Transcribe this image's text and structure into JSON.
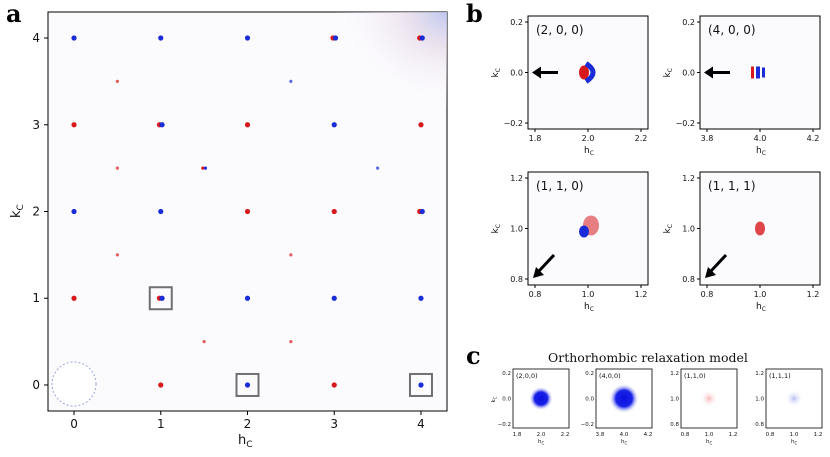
{
  "panel_letters": {
    "a": "a",
    "b": "b",
    "c": "c"
  },
  "colors": {
    "positive": "#d7191c",
    "negative": "#1a2bd8",
    "box": "#707070",
    "arrow": "#000000"
  },
  "chart_data": [
    {
      "id": "panel-a",
      "type": "heatmap",
      "xlabel_main": "h",
      "xlabel_sub": "C",
      "ylabel_main": "k",
      "ylabel_sub": "C",
      "xlim": [
        -0.3,
        4.3
      ],
      "ylim": [
        -0.3,
        4.3
      ],
      "xticks": [
        "0",
        "1",
        "2",
        "3",
        "4"
      ],
      "yticks": [
        "0",
        "1",
        "2",
        "3",
        "4"
      ],
      "peaks": [
        {
          "h": 0,
          "k": 4,
          "c": "neg"
        },
        {
          "h": 1,
          "k": 4,
          "c": "neg"
        },
        {
          "h": 2,
          "k": 4,
          "c": "neg"
        },
        {
          "h": 3,
          "k": 4,
          "c": "mix"
        },
        {
          "h": 4,
          "k": 4,
          "c": "mix"
        },
        {
          "h": 0.5,
          "k": 3.5,
          "c": "pos"
        },
        {
          "h": 2.5,
          "k": 3.5,
          "c": "neg"
        },
        {
          "h": 0,
          "k": 3,
          "c": "pos"
        },
        {
          "h": 1,
          "k": 3,
          "c": "mix"
        },
        {
          "h": 2,
          "k": 3,
          "c": "pos"
        },
        {
          "h": 3,
          "k": 3,
          "c": "neg"
        },
        {
          "h": 4,
          "k": 3,
          "c": "pos"
        },
        {
          "h": 0.5,
          "k": 2.5,
          "c": "pos"
        },
        {
          "h": 1.5,
          "k": 2.5,
          "c": "mix"
        },
        {
          "h": 3.5,
          "k": 2.5,
          "c": "neg"
        },
        {
          "h": 0,
          "k": 2,
          "c": "neg"
        },
        {
          "h": 1,
          "k": 2,
          "c": "neg"
        },
        {
          "h": 2,
          "k": 2,
          "c": "pos"
        },
        {
          "h": 3,
          "k": 2,
          "c": "pos"
        },
        {
          "h": 4,
          "k": 2,
          "c": "mix"
        },
        {
          "h": 0.5,
          "k": 1.5,
          "c": "pos"
        },
        {
          "h": 2.5,
          "k": 1.5,
          "c": "pos"
        },
        {
          "h": 0,
          "k": 1,
          "c": "pos"
        },
        {
          "h": 1,
          "k": 1,
          "c": "mix"
        },
        {
          "h": 2,
          "k": 1,
          "c": "neg"
        },
        {
          "h": 3,
          "k": 1,
          "c": "neg"
        },
        {
          "h": 4,
          "k": 1,
          "c": "neg"
        },
        {
          "h": 1.5,
          "k": 0.5,
          "c": "pos"
        },
        {
          "h": 2.5,
          "k": 0.5,
          "c": "pos"
        },
        {
          "h": 1,
          "k": 0,
          "c": "pos"
        },
        {
          "h": 2,
          "k": 0,
          "c": "neg"
        },
        {
          "h": 3,
          "k": 0,
          "c": "pos"
        },
        {
          "h": 4,
          "k": 0,
          "c": "neg"
        }
      ],
      "highlight_boxes": [
        {
          "h": 1,
          "k": 1
        },
        {
          "h": 2,
          "k": 0
        },
        {
          "h": 4,
          "k": 0
        }
      ]
    },
    {
      "id": "panel-b",
      "type": "heatmap",
      "subplots": [
        {
          "label": "(2, 0, 0)",
          "xlim": [
            1.8,
            2.2
          ],
          "ylim": [
            -0.2,
            0.2
          ],
          "xticks": [
            "1.8",
            "2.0",
            "2.2"
          ],
          "yticks": [
            "−0.2",
            "0.0",
            "0.2"
          ],
          "arrow": "horizontal"
        },
        {
          "label": "(4, 0, 0)",
          "xlim": [
            3.8,
            4.2
          ],
          "ylim": [
            -0.2,
            0.2
          ],
          "xticks": [
            "3.8",
            "4.0",
            "4.2"
          ],
          "yticks": [
            "−0.2",
            "0.0",
            "0.2"
          ],
          "arrow": "horizontal"
        },
        {
          "label": "(1, 1, 0)",
          "xlim": [
            0.8,
            1.2
          ],
          "ylim": [
            0.8,
            1.2
          ],
          "xticks": [
            "0.8",
            "1.0",
            "1.2"
          ],
          "yticks": [
            "0.8",
            "1.0",
            "1.2"
          ],
          "arrow": "diagonal"
        },
        {
          "label": "(1, 1, 1)",
          "xlim": [
            0.8,
            1.2
          ],
          "ylim": [
            0.8,
            1.2
          ],
          "xticks": [
            "0.8",
            "1.0",
            "1.2"
          ],
          "yticks": [
            "0.8",
            "1.0",
            "1.2"
          ],
          "arrow": "diagonal"
        }
      ],
      "xlabel_main": "h",
      "xlabel_sub": "C",
      "ylabel_main": "k",
      "ylabel_sub": "C"
    },
    {
      "id": "panel-c",
      "type": "heatmap",
      "title": "Orthorhombic relaxation model",
      "subplots": [
        {
          "label": "(2,0,0)",
          "xticks": [
            "1.8",
            "2.0",
            "2.2"
          ],
          "yticks": [
            "−0.2",
            "0.0",
            "0.2"
          ],
          "intensity": "strong",
          "sign": "neg"
        },
        {
          "label": "(4,0,0)",
          "xticks": [
            "3.8",
            "4.0",
            "4.2"
          ],
          "yticks": [
            "−0.2",
            "0.0",
            "0.2"
          ],
          "intensity": "strong",
          "sign": "neg"
        },
        {
          "label": "(1,1,0)",
          "xticks": [
            "0.8",
            "1.0",
            "1.2"
          ],
          "yticks": [
            "0.8",
            "1.0",
            "1.2"
          ],
          "intensity": "weak",
          "sign": "pos"
        },
        {
          "label": "(1,1,1)",
          "xticks": [
            "0.8",
            "1.0",
            "1.2"
          ],
          "yticks": [
            "0.8",
            "1.0",
            "1.2"
          ],
          "intensity": "weak",
          "sign": "neg"
        }
      ],
      "xlabel_main": "h",
      "xlabel_sub": "C",
      "ylabel_main": "k",
      "ylabel_sub": "C"
    }
  ]
}
